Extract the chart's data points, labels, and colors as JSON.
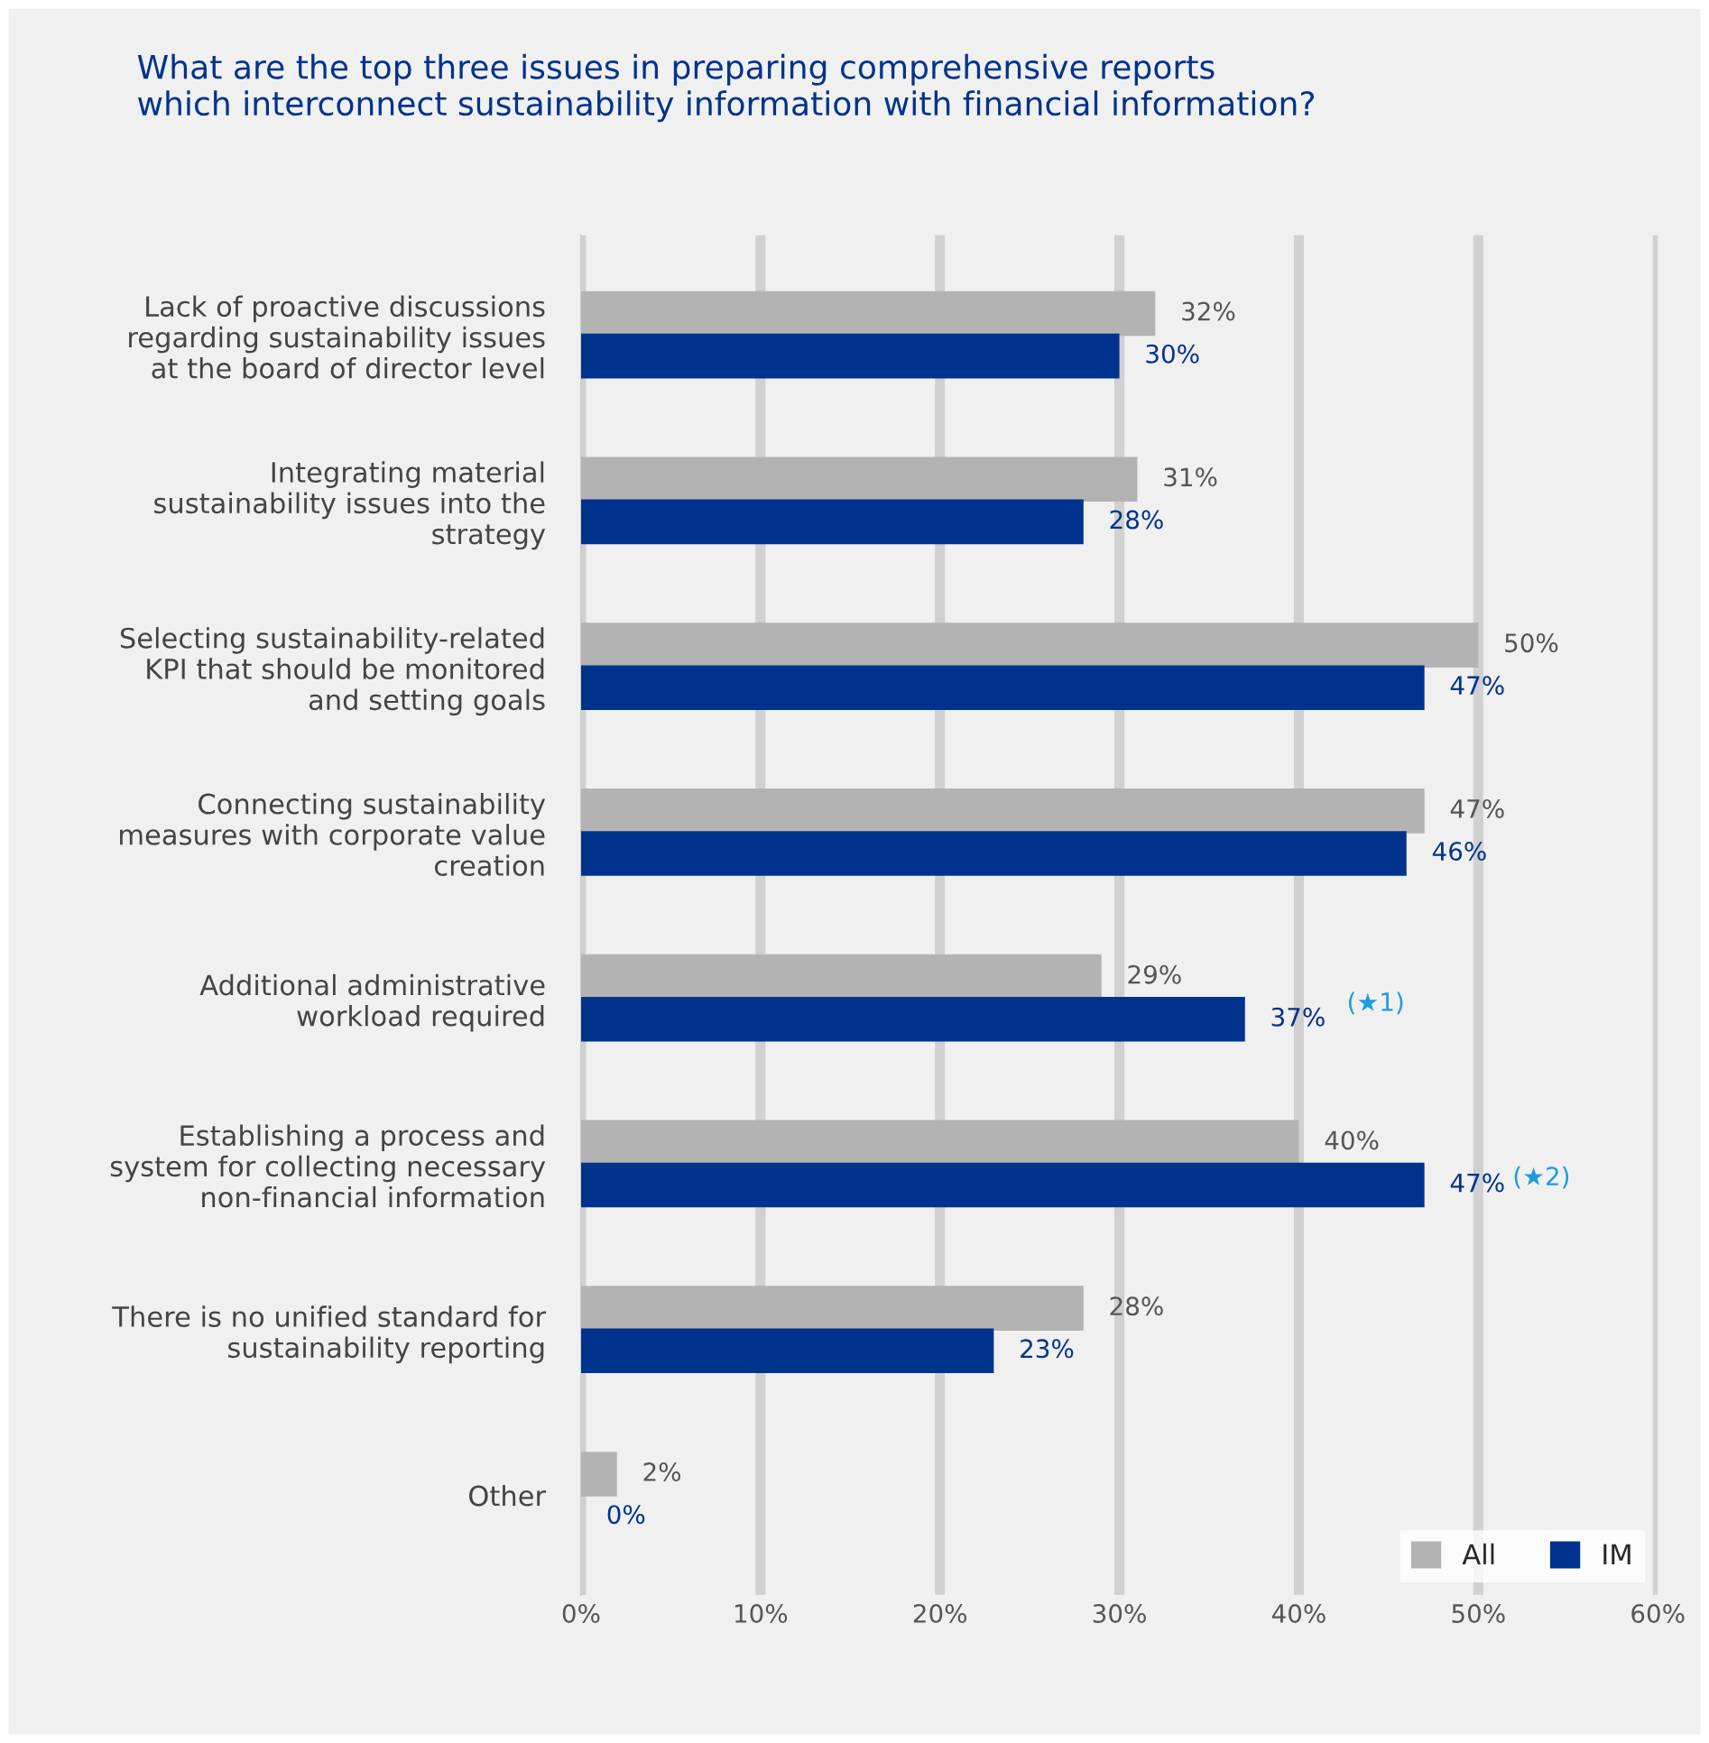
{
  "chart_data": {
    "type": "bar",
    "orientation": "horizontal",
    "title": "What are the top three issues in preparing comprehensive reports\nwhich interconnect sustainability information with financial information?",
    "categories": [
      "Lack of proactive discussions\nregarding sustainability issues\nat the board of director level",
      "Integrating material\nsustainability issues into the\nstrategy",
      "Selecting sustainability-related\nKPI that should be monitored\nand setting goals",
      "Connecting sustainability\nmeasures with corporate value\ncreation",
      "Additional administrative\nworkload required",
      "Establishing a process and\nsystem for collecting necessary\nnon-financial information",
      "There is no unified standard for\nsustainability reporting",
      "Other"
    ],
    "series": [
      {
        "name": "All",
        "color": "#b3b3b3",
        "values": [
          32,
          31,
          50,
          47,
          29,
          40,
          28,
          2
        ],
        "value_labels": [
          "32%",
          "31%",
          "50%",
          "47%",
          "29%",
          "40%",
          "28%",
          "2%"
        ]
      },
      {
        "name": "IM",
        "color": "#00338d",
        "values": [
          30,
          28,
          47,
          46,
          37,
          47,
          23,
          0
        ],
        "value_labels": [
          "30%",
          "28%",
          "47%",
          "46%",
          "37%",
          "47%",
          "23%",
          "0%"
        ]
      }
    ],
    "xlim": [
      0,
      60
    ],
    "xticks": [
      {
        "value": 0,
        "label": "0%"
      },
      {
        "value": 10,
        "label": "10%"
      },
      {
        "value": 20,
        "label": "20%"
      },
      {
        "value": 30,
        "label": "30%"
      },
      {
        "value": 40,
        "label": "40%"
      },
      {
        "value": 50,
        "label": "50%"
      },
      {
        "value": 60,
        "label": "60%"
      }
    ],
    "annotations": [
      "(★1)",
      "(★2)"
    ],
    "data_labels": true,
    "grid": "x",
    "legend": "bottom right"
  }
}
